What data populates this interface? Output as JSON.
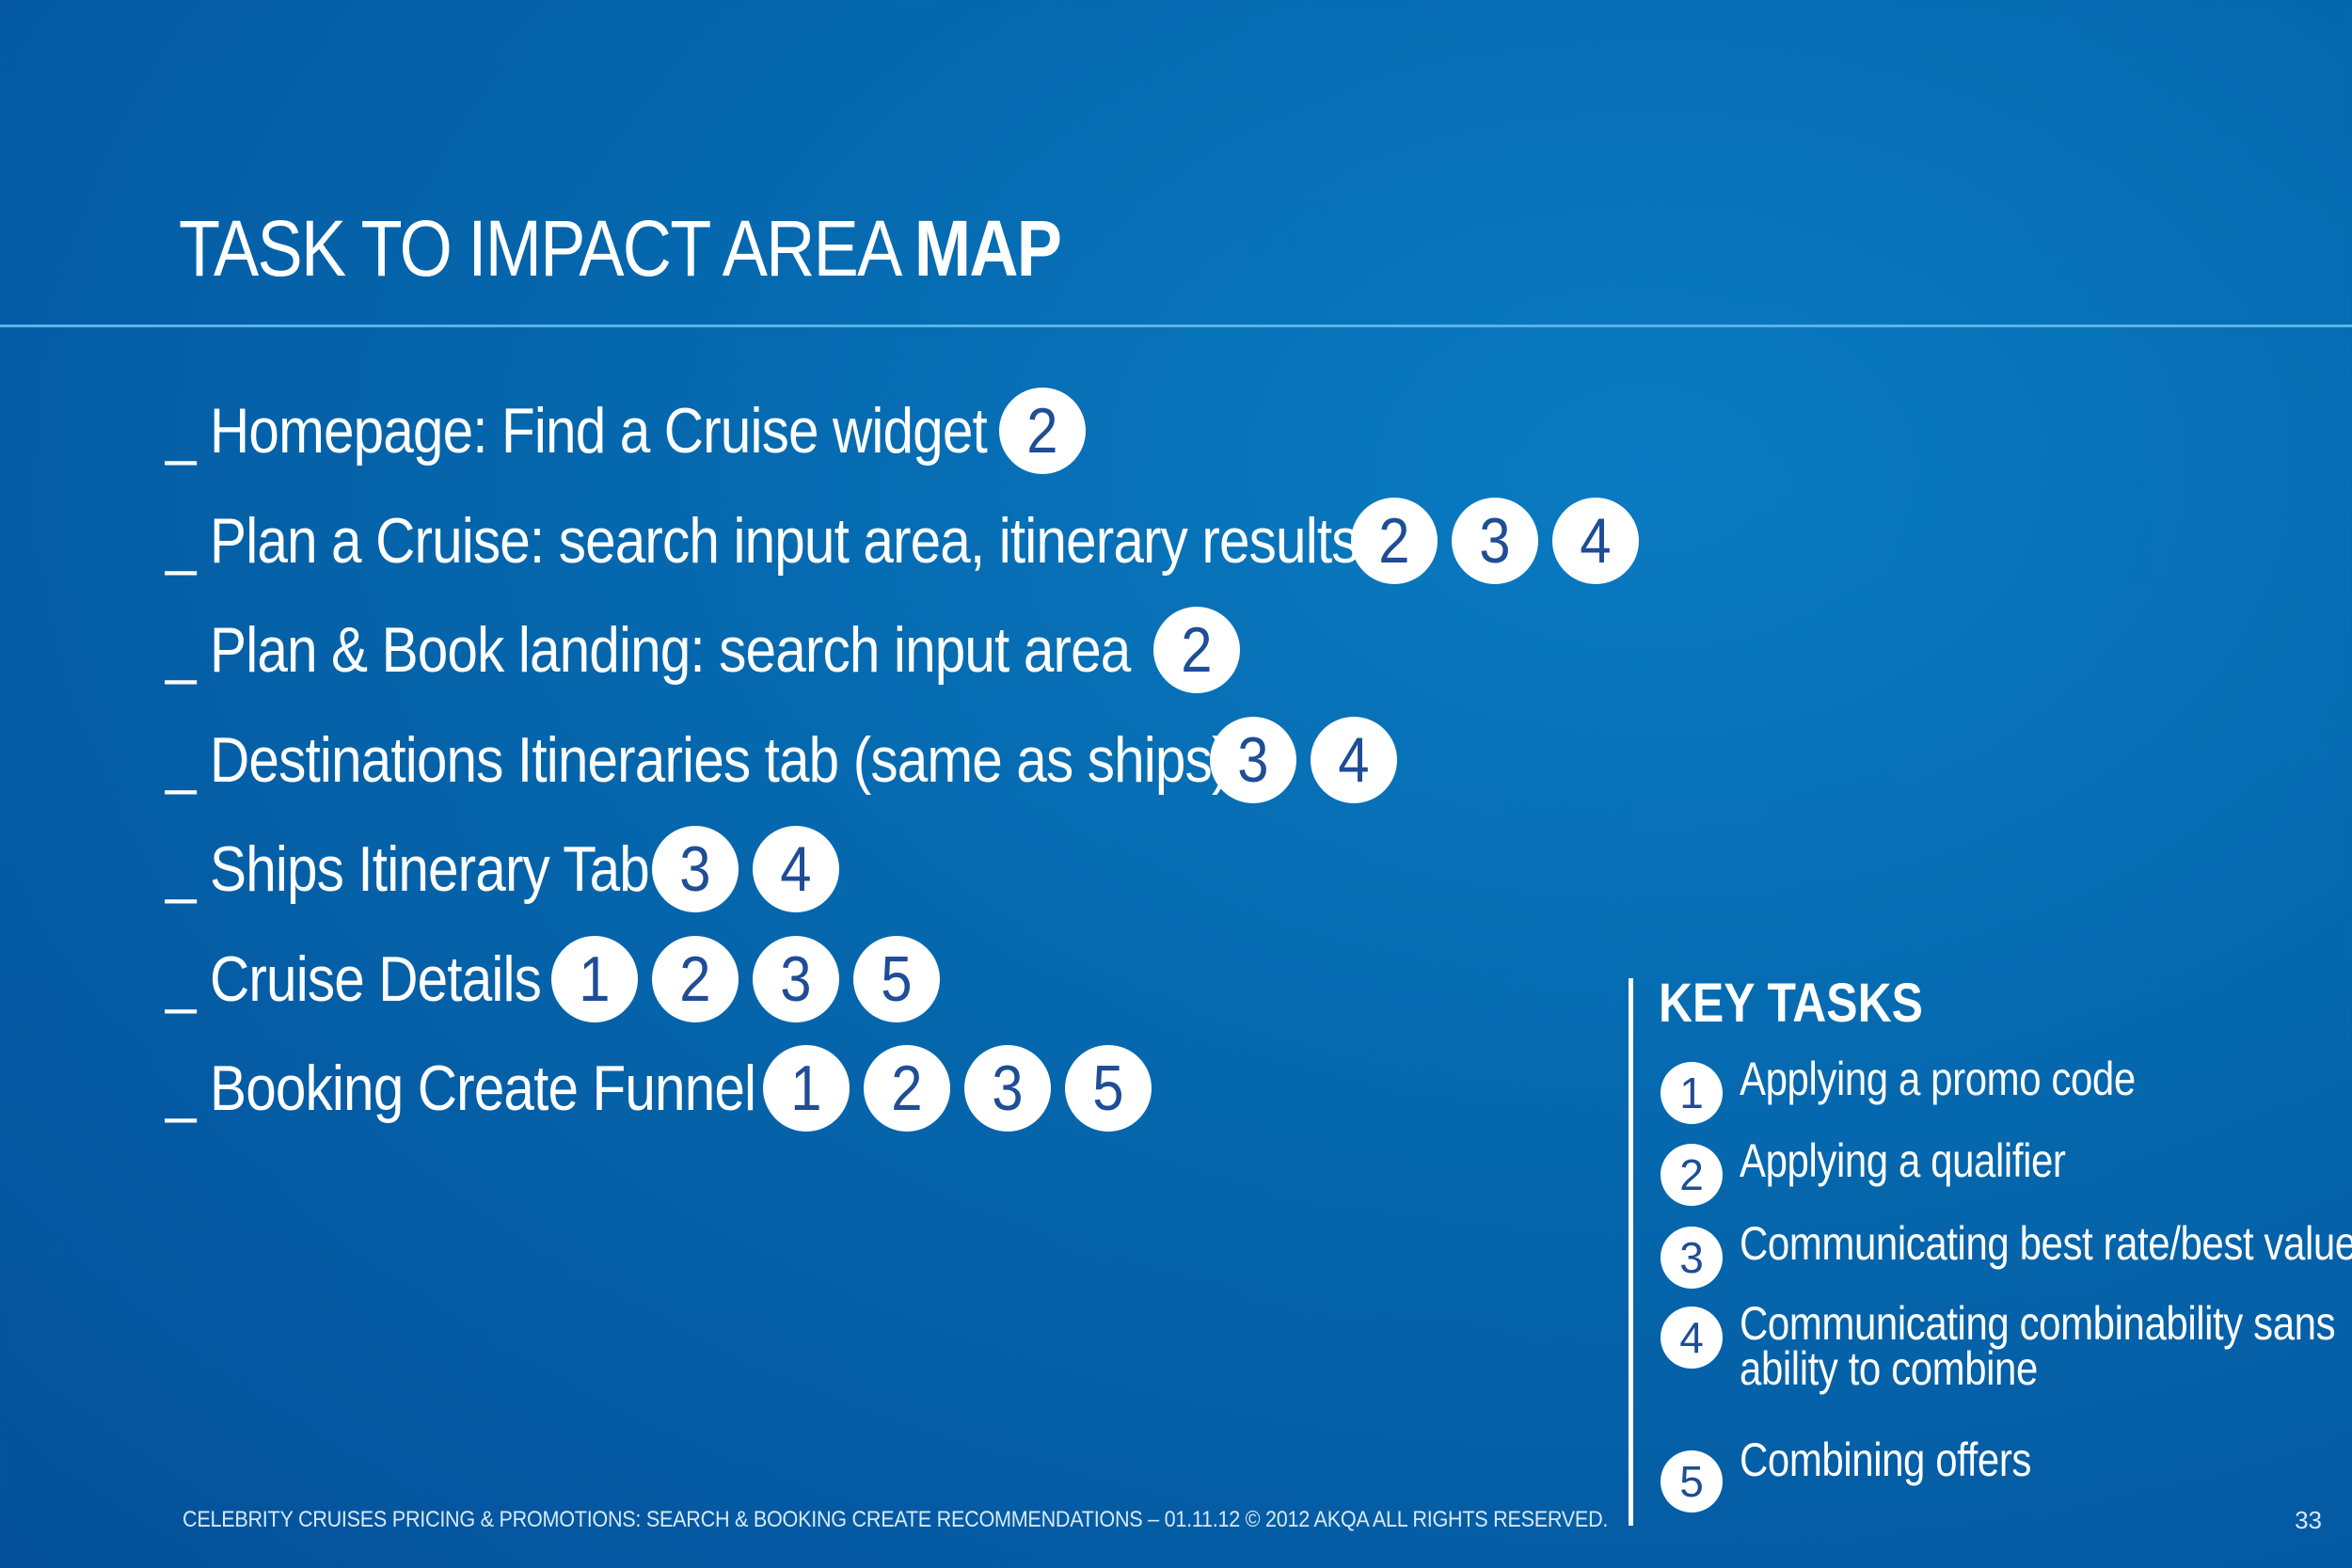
{
  "title": {
    "main": "TASK TO IMPACT AREA ",
    "emphasis": "MAP"
  },
  "tasks": [
    {
      "label": "_ Homepage: Find a Cruise widget",
      "badges": [
        "2"
      ]
    },
    {
      "label": "_ Plan a Cruise: search input area, itinerary results",
      "badges": [
        "2",
        "3",
        "4"
      ]
    },
    {
      "label": "_ Plan & Book landing: search input area",
      "badges": [
        "2"
      ]
    },
    {
      "label": "_ Destinations Itineraries tab (same as ships)",
      "badges": [
        "3",
        "4"
      ]
    },
    {
      "label": "_ Ships Itinerary Tab",
      "badges": [
        "3",
        "4"
      ]
    },
    {
      "label": "_ Cruise Details",
      "badges": [
        "1",
        "2",
        "3",
        "5"
      ]
    },
    {
      "label": "_ Booking Create Funnel",
      "badges": [
        "1",
        "2",
        "3",
        "5"
      ]
    }
  ],
  "key_tasks": {
    "title": "KEY TASKS",
    "items": [
      {
        "num": "1",
        "text": "Applying a promo code"
      },
      {
        "num": "2",
        "text": "Applying a qualifier"
      },
      {
        "num": "3",
        "text": "Communicating best rate/best value"
      },
      {
        "num": "4",
        "text": "Communicating combinability sans",
        "text2": "ability to combine"
      },
      {
        "num": "5",
        "text": "Combining offers"
      }
    ]
  },
  "footer": {
    "text": "CELEBRITY CRUISES PRICING & PROMOTIONS: SEARCH & BOOKING CREATE RECOMMENDATIONS – 01.11.12 © 2012 AKQA ALL RIGHTS RESERVED.",
    "page_number": "33"
  },
  "colors": {
    "background": "#0567ad",
    "badge_fill": "#ffffff",
    "badge_text": "#1f4d96",
    "rule": "#5ab4e6"
  }
}
